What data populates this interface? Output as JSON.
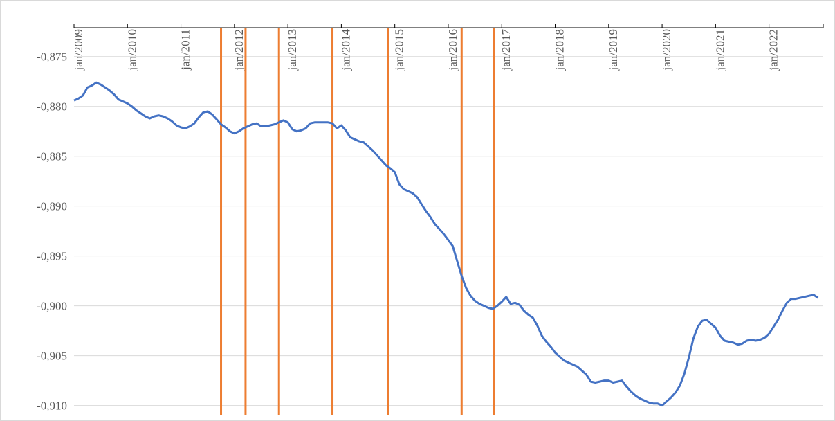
{
  "chart_data": {
    "type": "line",
    "categories": [
      "jan/2009",
      null,
      null,
      null,
      null,
      null,
      null,
      null,
      null,
      null,
      null,
      null,
      "jan/2010",
      null,
      null,
      null,
      null,
      null,
      null,
      null,
      null,
      null,
      null,
      null,
      "jan/2011",
      null,
      null,
      null,
      null,
      null,
      null,
      null,
      null,
      null,
      null,
      null,
      "jan/2012",
      null,
      null,
      null,
      null,
      null,
      null,
      null,
      null,
      null,
      null,
      null,
      "jan/2013",
      null,
      null,
      null,
      null,
      null,
      null,
      null,
      null,
      null,
      null,
      null,
      "jan/2014",
      null,
      null,
      null,
      null,
      null,
      null,
      null,
      null,
      null,
      null,
      null,
      "jan/2015",
      null,
      null,
      null,
      null,
      null,
      null,
      null,
      null,
      null,
      null,
      null,
      "jan/2016",
      null,
      null,
      null,
      null,
      null,
      null,
      null,
      null,
      null,
      null,
      null,
      "jan/2017",
      null,
      null,
      null,
      null,
      null,
      null,
      null,
      null,
      null,
      null,
      null,
      "jan/2018",
      null,
      null,
      null,
      null,
      null,
      null,
      null,
      null,
      null,
      null,
      null,
      "jan/2019",
      null,
      null,
      null,
      null,
      null,
      null,
      null,
      null,
      null,
      null,
      null,
      "jan/2020",
      null,
      null,
      null,
      null,
      null,
      null,
      null,
      null,
      null,
      null,
      null,
      "jan/2021",
      null,
      null,
      null,
      null,
      null,
      null,
      null,
      null,
      null,
      null,
      null,
      "jan/2022",
      null,
      null,
      null,
      null,
      null,
      null,
      null,
      null,
      null,
      null,
      null
    ],
    "values": [
      -0.8794,
      -0.8792,
      -0.8789,
      -0.8781,
      -0.8779,
      -0.8776,
      -0.8778,
      -0.8781,
      -0.8784,
      -0.8788,
      -0.8793,
      -0.8795,
      -0.8797,
      -0.88,
      -0.8804,
      -0.8807,
      -0.881,
      -0.8812,
      -0.881,
      -0.8809,
      -0.881,
      -0.8812,
      -0.8815,
      -0.8819,
      -0.8821,
      -0.8822,
      -0.882,
      -0.8817,
      -0.8811,
      -0.8806,
      -0.8805,
      -0.8808,
      -0.8813,
      -0.8818,
      -0.8821,
      -0.8825,
      -0.8827,
      -0.8825,
      -0.8822,
      -0.882,
      -0.8818,
      -0.8817,
      -0.882,
      -0.882,
      -0.8819,
      -0.8818,
      -0.8816,
      -0.8814,
      -0.8816,
      -0.8823,
      -0.8825,
      -0.8824,
      -0.8822,
      -0.8817,
      -0.8816,
      -0.8816,
      -0.8816,
      -0.8816,
      -0.8817,
      -0.8822,
      -0.8819,
      -0.8824,
      -0.8831,
      -0.8833,
      -0.8835,
      -0.8836,
      -0.884,
      -0.8844,
      -0.8849,
      -0.8854,
      -0.8859,
      -0.8862,
      -0.8866,
      -0.8878,
      -0.8883,
      -0.8885,
      -0.8887,
      -0.8891,
      -0.8898,
      -0.8905,
      -0.8911,
      -0.8918,
      -0.8923,
      -0.8928,
      -0.8934,
      -0.894,
      -0.8955,
      -0.897,
      -0.8982,
      -0.899,
      -0.8995,
      -0.8998,
      -0.9,
      -0.9002,
      -0.9003,
      -0.9,
      -0.8996,
      -0.8991,
      -0.8998,
      -0.8997,
      -0.8999,
      -0.9005,
      -0.9009,
      -0.9012,
      -0.902,
      -0.903,
      -0.9036,
      -0.9041,
      -0.9047,
      -0.9051,
      -0.9055,
      -0.9057,
      -0.9059,
      -0.9061,
      -0.9065,
      -0.9069,
      -0.9076,
      -0.9077,
      -0.9076,
      -0.9075,
      -0.9075,
      -0.9077,
      -0.9076,
      -0.9075,
      -0.9081,
      -0.9086,
      -0.909,
      -0.9093,
      -0.9095,
      -0.9097,
      -0.9098,
      -0.9098,
      -0.91,
      -0.9096,
      -0.9092,
      -0.9087,
      -0.908,
      -0.9068,
      -0.9052,
      -0.9033,
      -0.9021,
      -0.9015,
      -0.9014,
      -0.9018,
      -0.9022,
      -0.903,
      -0.9035,
      -0.9036,
      -0.9037,
      -0.9039,
      -0.9038,
      -0.9035,
      -0.9034,
      -0.9035,
      -0.9034,
      -0.9032,
      -0.9028,
      -0.9021,
      -0.9014,
      -0.9005,
      -0.8997,
      -0.8993,
      -0.8993,
      -0.8992,
      -0.8991,
      -0.899,
      -0.8989,
      -0.8992
    ],
    "color": "#4472c4",
    "vertical_lines": [
      33,
      38.5,
      46,
      58,
      70.5,
      87,
      94.3
    ],
    "vertical_line_color": "#ed7d31",
    "ylim": [
      -0.911,
      -0.8721
    ],
    "yticks": [
      {
        "value": -0.875,
        "label": "-0,875"
      },
      {
        "value": -0.88,
        "label": "-0,880"
      },
      {
        "value": -0.885,
        "label": "-0,885"
      },
      {
        "value": -0.89,
        "label": "-0,890"
      },
      {
        "value": -0.895,
        "label": "-0,895"
      },
      {
        "value": -0.9,
        "label": "-0,900"
      },
      {
        "value": -0.905,
        "label": "-0,905"
      },
      {
        "value": -0.91,
        "label": "-0,910"
      }
    ],
    "grid": true
  }
}
